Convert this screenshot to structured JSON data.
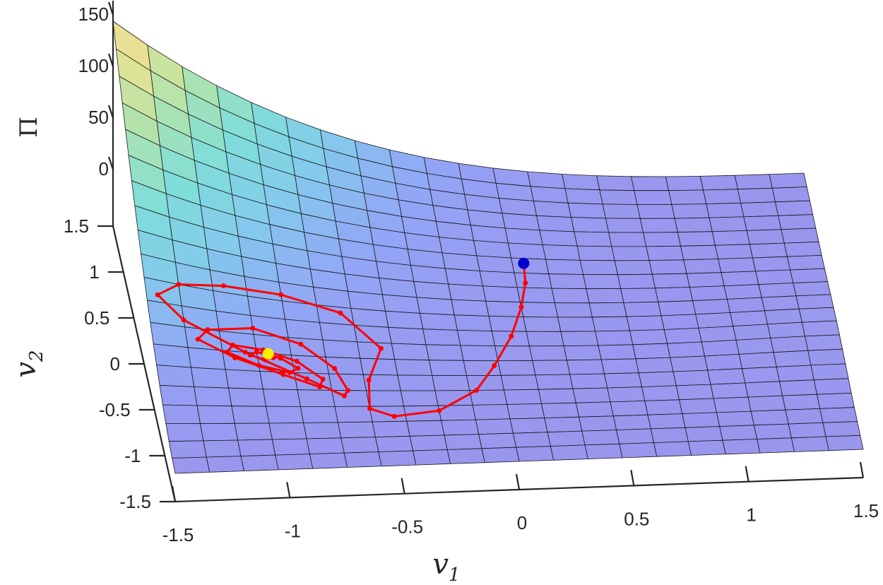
{
  "chart_data": {
    "type": "surface",
    "surface_description": "3D surface of potential Pi over (v1, v2) with a red optimization trajectory",
    "x_axis": {
      "label_base": "v",
      "label_sub": "1",
      "ticks": [
        "-1.5",
        "-1",
        "-0.5",
        "0",
        "0.5",
        "1",
        "1.5"
      ],
      "range": [
        -1.5,
        1.5
      ]
    },
    "y_axis": {
      "label_base": "v",
      "label_sub": "2",
      "ticks": [
        "-1.5",
        "-1",
        "-0.5",
        "0",
        "0.5",
        "1",
        "1.5"
      ],
      "range": [
        -1.5,
        1.5
      ]
    },
    "z_axis": {
      "label": "Π",
      "ticks": [
        "0",
        "50",
        "100",
        "150"
      ],
      "range": [
        0,
        150
      ]
    },
    "trajectory": {
      "color": "#ff0000",
      "start_marker_color": "#0000cc",
      "end_marker_color": "#ffee00",
      "start": [
        0.2,
        0.55
      ],
      "end": [
        -1.0,
        -0.45
      ],
      "points": [
        [
          0.2,
          0.55
        ],
        [
          0.19,
          0.35
        ],
        [
          0.15,
          0.1
        ],
        [
          0.08,
          -0.2
        ],
        [
          -0.02,
          -0.5
        ],
        [
          -0.12,
          -0.75
        ],
        [
          -0.3,
          -0.95
        ],
        [
          -0.5,
          -1.0
        ],
        [
          -0.6,
          -0.92
        ],
        [
          -0.58,
          -0.65
        ],
        [
          -0.5,
          -0.35
        ],
        [
          -0.65,
          -0.05
        ],
        [
          -0.9,
          0.05
        ],
        [
          -1.15,
          0.05
        ],
        [
          -1.35,
          0.0
        ],
        [
          -1.45,
          -0.1
        ],
        [
          -1.35,
          -0.25
        ],
        [
          -1.1,
          -0.45
        ],
        [
          -0.85,
          -0.65
        ],
        [
          -0.7,
          -0.8
        ],
        [
          -0.68,
          -0.75
        ],
        [
          -0.72,
          -0.55
        ],
        [
          -0.85,
          -0.35
        ],
        [
          -1.05,
          -0.25
        ],
        [
          -1.25,
          -0.3
        ],
        [
          -1.3,
          -0.38
        ],
        [
          -1.15,
          -0.5
        ],
        [
          -0.95,
          -0.62
        ],
        [
          -0.8,
          -0.72
        ],
        [
          -0.78,
          -0.65
        ],
        [
          -0.88,
          -0.5
        ],
        [
          -1.02,
          -0.42
        ],
        [
          -1.15,
          -0.4
        ],
        [
          -1.18,
          -0.46
        ],
        [
          -1.05,
          -0.55
        ],
        [
          -0.92,
          -0.6
        ],
        [
          -0.88,
          -0.56
        ],
        [
          -0.95,
          -0.48
        ],
        [
          -1.05,
          -0.44
        ],
        [
          -1.08,
          -0.47
        ],
        [
          -1.02,
          -0.5
        ],
        [
          -0.98,
          -0.48
        ],
        [
          -1.0,
          -0.45
        ]
      ]
    }
  }
}
